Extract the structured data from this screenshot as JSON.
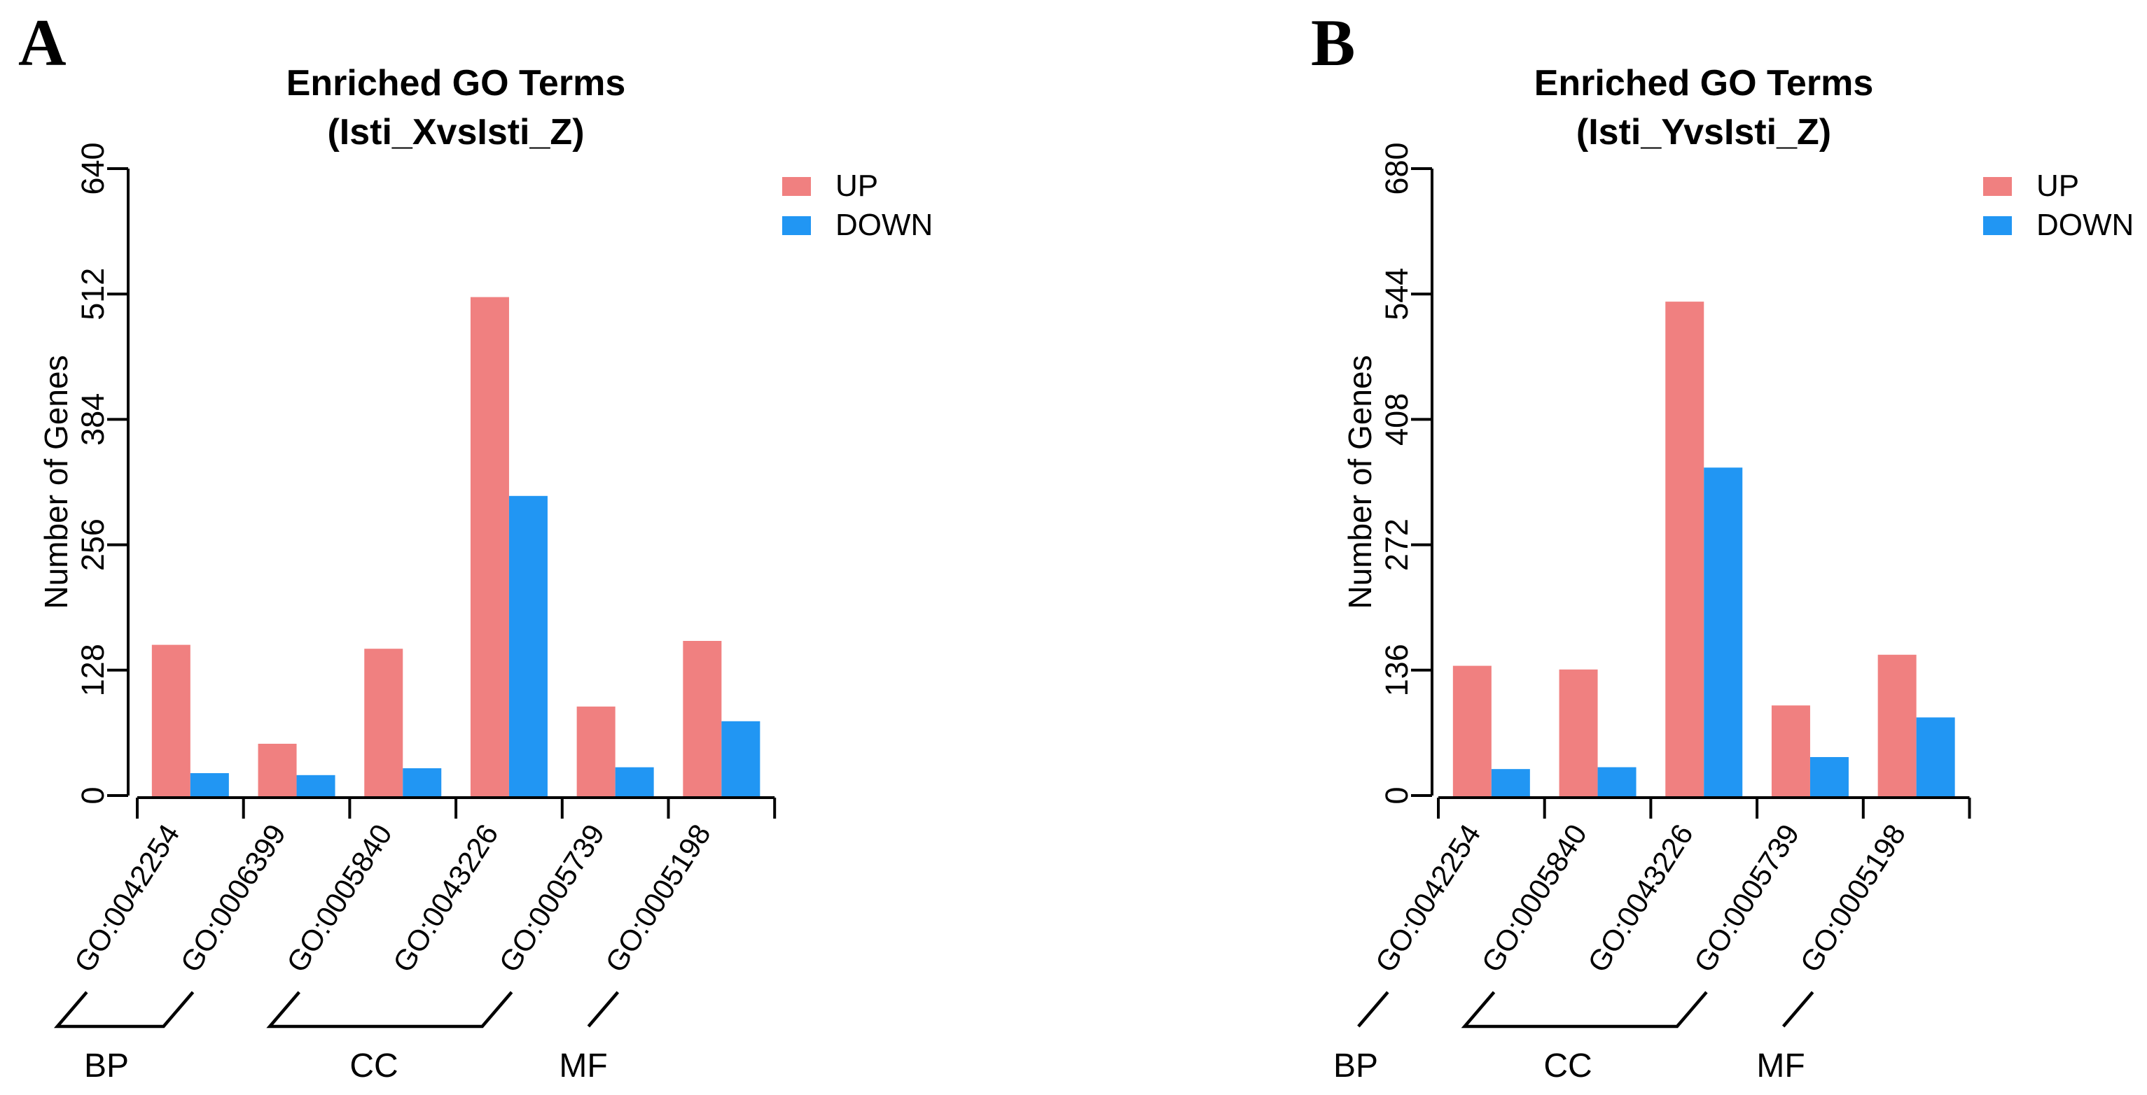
{
  "chart_data": [
    {
      "type": "bar",
      "panel_label": "A",
      "title_line1": "Enriched GO Terms",
      "title_line2": "(Isti_XvsIsti_Z)",
      "ylabel": "Number of Genes",
      "ylim": [
        0,
        640
      ],
      "ymax": 640,
      "yticks": [
        0,
        128,
        256,
        384,
        512,
        640
      ],
      "categories": [
        "GO:0042254",
        "GO:0006399",
        "GO:0005840",
        "GO:0043226",
        "GO:0005739",
        "GO:0005198"
      ],
      "series": [
        {
          "name": "UP",
          "color": "#F08080",
          "values": [
            156,
            55,
            152,
            511,
            93,
            160
          ]
        },
        {
          "name": "DOWN",
          "color": "#2196F3",
          "values": [
            25,
            23,
            30,
            308,
            31,
            78
          ]
        }
      ],
      "groups": [
        {
          "label": "BP",
          "from": 0,
          "to": 1
        },
        {
          "label": "CC",
          "from": 2,
          "to": 4
        },
        {
          "label": "MF",
          "from": 5,
          "to": 5
        }
      ],
      "grid": "off",
      "legend_position": "top-right"
    },
    {
      "type": "bar",
      "panel_label": "B",
      "title_line1": "Enriched GO Terms",
      "title_line2": "(Isti_YvsIsti_Z)",
      "ylabel": "Number of Genes",
      "ylim": [
        0,
        680
      ],
      "ymax": 680,
      "yticks": [
        0,
        136,
        272,
        408,
        544,
        680
      ],
      "categories": [
        "GO:0042254",
        "GO:0005840",
        "GO:0043226",
        "GO:0005739",
        "GO:0005198"
      ],
      "series": [
        {
          "name": "UP",
          "color": "#F08080",
          "values": [
            143,
            139,
            538,
            100,
            155
          ]
        },
        {
          "name": "DOWN",
          "color": "#2196F3",
          "values": [
            31,
            33,
            358,
            44,
            87
          ]
        }
      ],
      "groups": [
        {
          "label": "BP",
          "from": 0,
          "to": 0
        },
        {
          "label": "CC",
          "from": 1,
          "to": 3
        },
        {
          "label": "MF",
          "from": 4,
          "to": 4
        }
      ],
      "grid": "off",
      "legend_position": "top-right"
    }
  ]
}
